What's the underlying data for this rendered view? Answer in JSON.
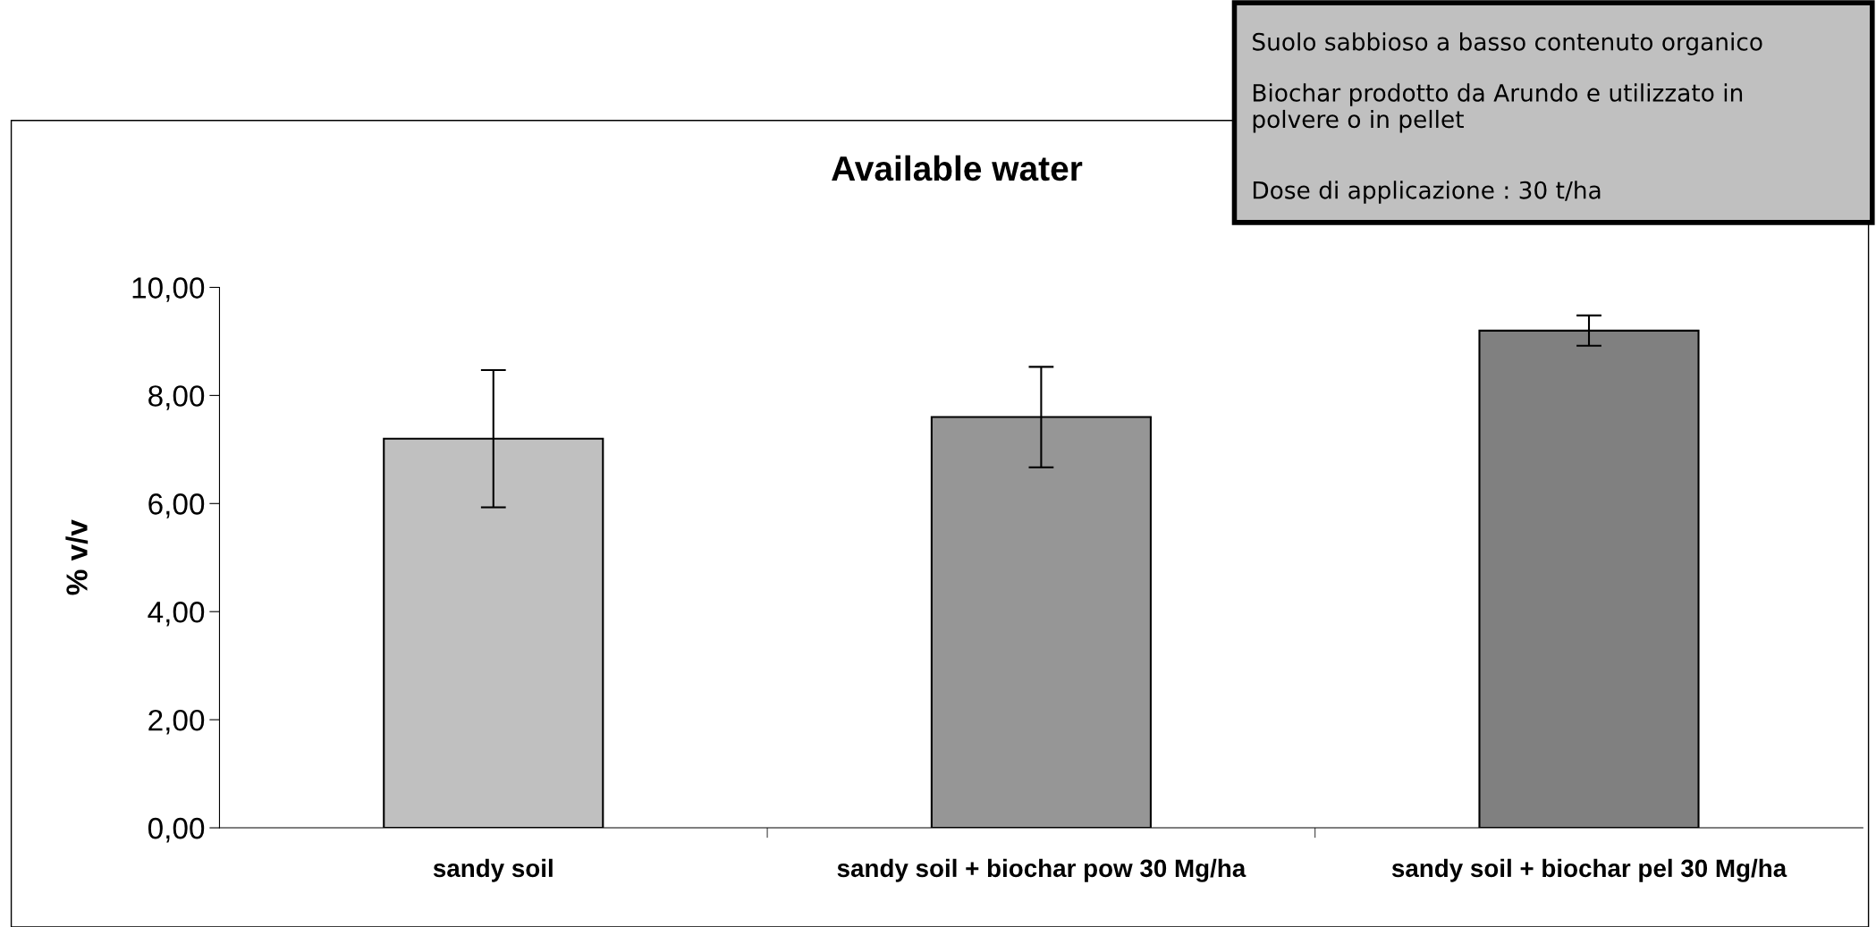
{
  "chart_data": {
    "type": "bar",
    "title": "Available water",
    "ylabel": "% v/v",
    "categories": [
      "sandy soil",
      "sandy soil + biochar pow 30 Mg/ha",
      "sandy soil + biochar pel 30 Mg/ha"
    ],
    "values": [
      7.2,
      7.6,
      9.2
    ],
    "colors": [
      "#c0c0c0",
      "#969696",
      "#808080"
    ],
    "errors": [
      1.27,
      0.93,
      0.28
    ],
    "ylim": [
      0,
      10
    ],
    "yticks": [
      {
        "value": 0,
        "label": "0,00"
      },
      {
        "value": 2,
        "label": "2,00"
      },
      {
        "value": 4,
        "label": "4,00"
      },
      {
        "value": 6,
        "label": "6,00"
      },
      {
        "value": 8,
        "label": "8,00"
      },
      {
        "value": 10,
        "label": "10,00"
      }
    ],
    "grid": false,
    "legend": false,
    "annotations": [
      "Suolo sabbioso a basso contenuto organico",
      "Biochar prodotto da Arundo e utilizzato in polvere o in pellet",
      "Dose di applicazione : 30 t/ha"
    ]
  }
}
